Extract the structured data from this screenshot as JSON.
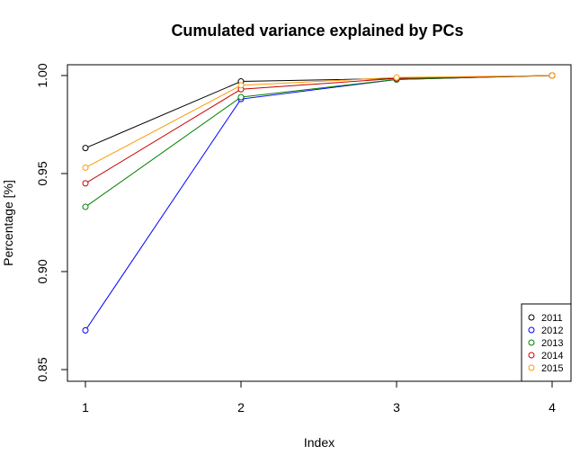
{
  "chart_data": {
    "type": "line",
    "title": "Cumulated variance explained by PCs",
    "xlabel": "Index",
    "ylabel": "Percentage [%]",
    "x": [
      1,
      2,
      3,
      4
    ],
    "xlim": [
      1,
      4
    ],
    "ylim": [
      0.85,
      1.0
    ],
    "xticks": [
      "1",
      "2",
      "3",
      "4"
    ],
    "yticks": [
      "0.85",
      "0.90",
      "0.95",
      "1.00"
    ],
    "grid": false,
    "legend_position": "bottom-right",
    "series": [
      {
        "name": "2011",
        "color": "#000000",
        "values": [
          0.963,
          0.997,
          0.9985,
          1.0
        ]
      },
      {
        "name": "2012",
        "color": "#0000ff",
        "values": [
          0.87,
          0.988,
          0.998,
          1.0
        ]
      },
      {
        "name": "2013",
        "color": "#008000",
        "values": [
          0.933,
          0.989,
          0.998,
          1.0
        ]
      },
      {
        "name": "2014",
        "color": "#cc0000",
        "values": [
          0.945,
          0.993,
          0.9985,
          1.0
        ]
      },
      {
        "name": "2015",
        "color": "#ff9900",
        "values": [
          0.953,
          0.995,
          0.999,
          1.0
        ]
      }
    ]
  }
}
